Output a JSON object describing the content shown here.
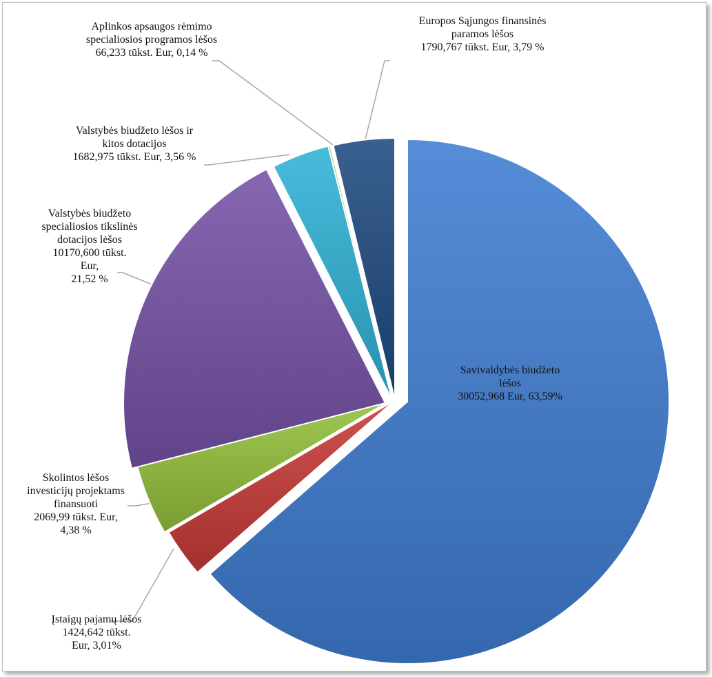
{
  "chart_data": {
    "type": "pie",
    "start_angle_deg": 0,
    "direction": "clockwise",
    "slices": [
      {
        "lines": [
          "Savivaldybės biudžeto",
          "lėšos",
          "30052,968 Eur, 63,59%"
        ],
        "value": 30052.968,
        "percent": 63.59,
        "color": "#3f7dd3"
      },
      {
        "lines": [
          "Įstaigų pajamų lėšos",
          "1424,642 tūkst.",
          "Eur, 3,01%"
        ],
        "value": 1424.642,
        "percent": 3.01,
        "color": "#c73a37"
      },
      {
        "lines": [
          "Skolintos lėšos",
          "investicijų  projektams",
          "finansuoti",
          "2069,99 tūkst. Eur,",
          "4,38 %"
        ],
        "value": 2069.99,
        "percent": 4.38,
        "color": "#93bf3a"
      },
      {
        "lines": [
          "Valstybės biudžeto",
          "specialiosios tikslinės",
          "dotacijos lėšos",
          "10170,600 tūkst.",
          "Eur,",
          "21,52 %"
        ],
        "value": 10170.6,
        "percent": 21.52,
        "color": "#7552a6"
      },
      {
        "lines": [
          "Valstybės biudžeto lėšos ir",
          "kitos dotacijos",
          "1682,975 tūkst. Eur, 3,56 %"
        ],
        "value": 1682.975,
        "percent": 3.56,
        "color": "#2fb2d6"
      },
      {
        "lines": [
          "Aplinkos apsaugos rėmimo",
          "specialiosios programos lėšos",
          "66,233 tūkst. Eur, 0,14 %"
        ],
        "value": 66.233,
        "percent": 0.14,
        "color": "#a8d46e"
      },
      {
        "lines": [
          "Europos Sąjungos finansinės",
          "paramos lėšos",
          "1790,767 tūkst. Eur, 3,79 %"
        ],
        "value": 1790.767,
        "percent": 3.79,
        "color": "#1f4a80"
      }
    ]
  }
}
